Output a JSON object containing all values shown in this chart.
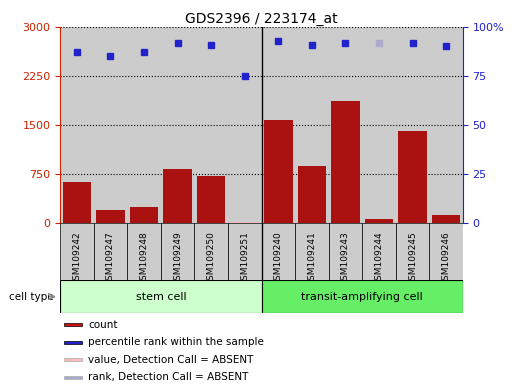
{
  "title": "GDS2396 / 223174_at",
  "samples": [
    "GSM109242",
    "GSM109247",
    "GSM109248",
    "GSM109249",
    "GSM109250",
    "GSM109251",
    "GSM109240",
    "GSM109241",
    "GSM109243",
    "GSM109244",
    "GSM109245",
    "GSM109246"
  ],
  "count_values": [
    620,
    200,
    240,
    830,
    720,
    15,
    1580,
    870,
    1870,
    50,
    1400,
    120
  ],
  "percentile_values": [
    87,
    85,
    87,
    92,
    91,
    75,
    93,
    91,
    92,
    92,
    92,
    90
  ],
  "absent_value_idx": [
    5
  ],
  "absent_rank_idx": [
    9
  ],
  "stem_cell_indices": [
    0,
    1,
    2,
    3,
    4,
    5
  ],
  "transit_indices": [
    6,
    7,
    8,
    9,
    10,
    11
  ],
  "left_yticks": [
    0,
    750,
    1500,
    2250,
    3000
  ],
  "right_ytick_vals": [
    0,
    25,
    50,
    75,
    100
  ],
  "right_ytick_labels": [
    "0",
    "25",
    "50",
    "75",
    "100%"
  ],
  "ylim_left": [
    0,
    3000
  ],
  "bar_color": "#aa1111",
  "dot_color": "#2222cc",
  "absent_bar_color": "#ffbbbb",
  "absent_dot_color": "#aaaacc",
  "stem_cell_color": "#ccffcc",
  "transit_color": "#66ee66",
  "bg_color": "#cccccc",
  "legend_items": [
    {
      "color": "#cc1111",
      "label": "count",
      "edgecolor": "#000000"
    },
    {
      "color": "#2222cc",
      "label": "percentile rank within the sample",
      "edgecolor": "#000000"
    },
    {
      "color": "#ffbbbb",
      "label": "value, Detection Call = ABSENT",
      "edgecolor": "#aaaaaa"
    },
    {
      "color": "#aaaacc",
      "label": "rank, Detection Call = ABSENT",
      "edgecolor": "#aaaaaa"
    }
  ]
}
